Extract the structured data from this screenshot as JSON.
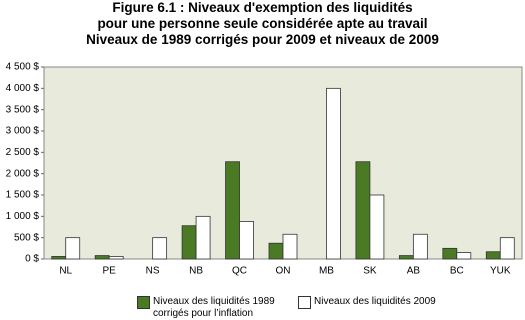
{
  "chart_data": {
    "type": "bar",
    "title": "Figure 6.1 : Niveaux d'exemption des liquidités\npour une personne seule considérée apte au travail\nNiveaux de 1989 corrigés pour 2009 et niveaux de 2009",
    "categories": [
      "NL",
      "PE",
      "NS",
      "NB",
      "QC",
      "ON",
      "MB",
      "SK",
      "AB",
      "BC",
      "YUK"
    ],
    "series": [
      {
        "name": "Niveaux des liquidités 1989\ncorrigés pour l’inflation",
        "color": "#4a7a23",
        "values": [
          60,
          80,
          0,
          780,
          2280,
          370,
          0,
          2280,
          80,
          250,
          170
        ]
      },
      {
        "name": "Niveaux des liquidités 2009",
        "color": "#ffffff",
        "values": [
          500,
          60,
          500,
          1000,
          880,
          580,
          4000,
          1500,
          580,
          150,
          500
        ]
      }
    ],
    "ylim": [
      0,
      4500
    ],
    "yticks": [
      {
        "value": 0,
        "label": "0 $"
      },
      {
        "value": 500,
        "label": "500 $"
      },
      {
        "value": 1000,
        "label": "1 000 $"
      },
      {
        "value": 1500,
        "label": "1 500 $"
      },
      {
        "value": 2000,
        "label": "2 000 $"
      },
      {
        "value": 2500,
        "label": "2 500 $"
      },
      {
        "value": 3000,
        "label": "3 000 $"
      },
      {
        "value": 3500,
        "label": "3 500 $"
      },
      {
        "value": 4000,
        "label": "4 000 $"
      },
      {
        "value": 4500,
        "label": "4 500 $"
      }
    ],
    "grid": false
  }
}
